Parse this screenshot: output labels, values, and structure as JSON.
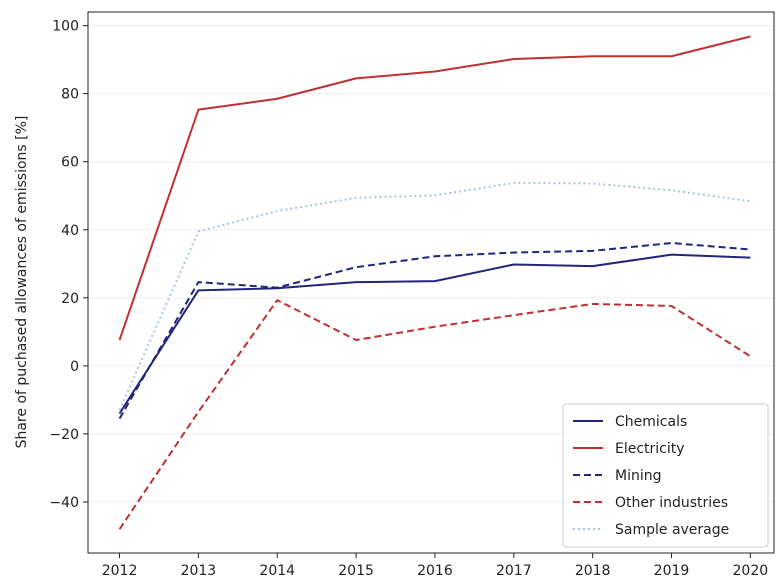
{
  "chart_data": {
    "type": "line",
    "title": "",
    "xlabel": "",
    "ylabel": "Share of puchased allowances of emissions [%]",
    "x": [
      2012,
      2013,
      2014,
      2015,
      2016,
      2017,
      2018,
      2019,
      2020
    ],
    "x_ticks": [
      "2012",
      "2013",
      "2014",
      "2015",
      "2016",
      "2017",
      "2018",
      "2019",
      "2020"
    ],
    "y_ticks": [
      "−40",
      "−20",
      "0",
      "20",
      "40",
      "60",
      "80",
      "100"
    ],
    "y_tick_values": [
      -40,
      -20,
      0,
      20,
      40,
      60,
      80,
      100
    ],
    "ylim": [
      -55,
      104
    ],
    "xlim": [
      2011.6,
      2020.3
    ],
    "grid": "horizontal, faint",
    "legend_position": "lower-right",
    "series": [
      {
        "name": "Chemicals",
        "color": "#22267a",
        "style": "solid",
        "values": [
          -14,
          22.2,
          22.8,
          24.6,
          24.9,
          29.8,
          29.3,
          32.7,
          31.8
        ]
      },
      {
        "name": "Electricity",
        "color": "#c03030",
        "style": "solid",
        "values": [
          7.6,
          75.3,
          78.5,
          84.5,
          86.5,
          90.2,
          91.0,
          91.0,
          96.8
        ]
      },
      {
        "name": "Mining",
        "color": "#22267a",
        "style": "dashed",
        "values": [
          -15.5,
          24.6,
          23.0,
          29.0,
          32.2,
          33.3,
          33.8,
          36.1,
          34.2
        ]
      },
      {
        "name": "Other industries",
        "color": "#c03030",
        "style": "dashed",
        "values": [
          -48,
          -13.5,
          19.3,
          7.6,
          11.5,
          14.9,
          18.2,
          17.6,
          2.8
        ]
      },
      {
        "name": "Sample average",
        "color": "#a9c3e6",
        "style": "dotted",
        "values": [
          -13,
          39.5,
          45.5,
          49.4,
          50.1,
          53.8,
          53.6,
          51.6,
          48.4
        ]
      }
    ]
  }
}
